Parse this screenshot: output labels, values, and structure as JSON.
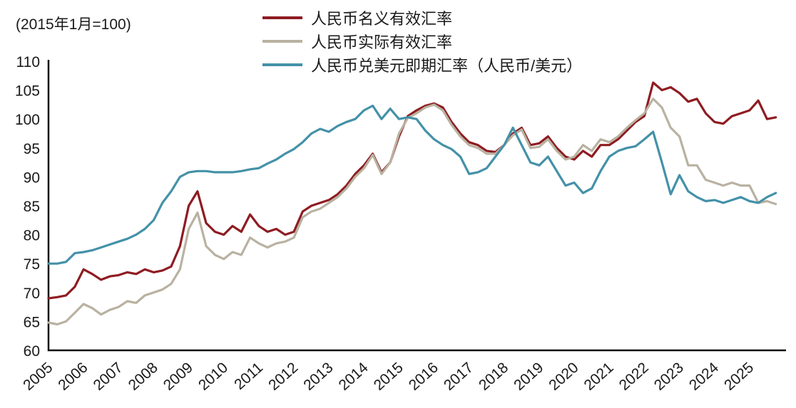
{
  "chart": {
    "note": "(2015年1月=100)"
  },
  "chart_data": {
    "type": "line",
    "title": "",
    "xlabel": "",
    "ylabel": "",
    "note": "(2015年1月=100)",
    "grid": false,
    "legend_position": "top-center",
    "xlim": [
      2005,
      2026
    ],
    "ylim": [
      60,
      110
    ],
    "yticks": [
      60,
      65,
      70,
      75,
      80,
      85,
      90,
      95,
      100,
      105,
      110
    ],
    "xticks": [
      2005,
      2006,
      2007,
      2008,
      2009,
      2010,
      2011,
      2012,
      2013,
      2014,
      2015,
      2016,
      2017,
      2018,
      2019,
      2020,
      2021,
      2022,
      2023,
      2024,
      2025
    ],
    "x": [
      2005,
      2005.25,
      2005.5,
      2005.75,
      2006,
      2006.25,
      2006.5,
      2006.75,
      2007,
      2007.25,
      2007.5,
      2007.75,
      2008,
      2008.25,
      2008.5,
      2008.75,
      2009,
      2009.25,
      2009.5,
      2009.75,
      2010,
      2010.25,
      2010.5,
      2010.75,
      2011,
      2011.25,
      2011.5,
      2011.75,
      2012,
      2012.25,
      2012.5,
      2012.75,
      2013,
      2013.25,
      2013.5,
      2013.75,
      2014,
      2014.25,
      2014.5,
      2014.75,
      2015,
      2015.25,
      2015.5,
      2015.75,
      2016,
      2016.25,
      2016.5,
      2016.75,
      2017,
      2017.25,
      2017.5,
      2017.75,
      2018,
      2018.25,
      2018.5,
      2018.75,
      2019,
      2019.25,
      2019.5,
      2019.75,
      2020,
      2020.25,
      2020.5,
      2020.75,
      2021,
      2021.25,
      2021.5,
      2021.75,
      2022,
      2022.25,
      2022.5,
      2022.75,
      2023,
      2023.25,
      2023.5,
      2023.75,
      2024,
      2024.25,
      2024.5,
      2024.75,
      2025,
      2025.25,
      2025.5,
      2025.75
    ],
    "series": [
      {
        "name": "人民币名义有效汇率",
        "color": "#8e1c22",
        "values": [
          69,
          69.2,
          69.5,
          71,
          74,
          73.2,
          72.2,
          72.8,
          73,
          73.5,
          73.2,
          74,
          73.5,
          73.8,
          74.5,
          78,
          85,
          87.5,
          82,
          80.5,
          80,
          81.5,
          80.5,
          83.5,
          81.5,
          80.5,
          81,
          80,
          80.5,
          84,
          85,
          85.5,
          86,
          87,
          88.5,
          90.5,
          92,
          94,
          90.8,
          92.5,
          97,
          100.5,
          101.5,
          102.3,
          102.7,
          102,
          99.5,
          97.5,
          96,
          95.5,
          94.5,
          94.3,
          95.5,
          97.5,
          98.5,
          95.5,
          95.8,
          97,
          95,
          93.5,
          93,
          94.5,
          93.5,
          95.5,
          95.5,
          96.5,
          98,
          99.5,
          100.5,
          106.3,
          105,
          105.5,
          104.5,
          103,
          103.5,
          101,
          99.5,
          99.2,
          100.5,
          101,
          101.5,
          103.2,
          100,
          100.3
        ]
      },
      {
        "name": "人民币实际有效汇率",
        "color": "#b9b2a1",
        "values": [
          64.8,
          64.5,
          65,
          66.5,
          68,
          67.3,
          66.2,
          67,
          67.5,
          68.5,
          68.2,
          69.5,
          70,
          70.5,
          71.5,
          74,
          81,
          83.8,
          78,
          76.5,
          75.8,
          77,
          76.5,
          79.5,
          78.5,
          77.8,
          78.5,
          78.8,
          79.5,
          83,
          84,
          84.5,
          85.5,
          86.5,
          88,
          90,
          91.5,
          93.8,
          90.5,
          92.5,
          97.5,
          100.2,
          101,
          102,
          102.5,
          101.5,
          99,
          97,
          95.5,
          95,
          94,
          94,
          95.5,
          97.2,
          98.2,
          95,
          95.2,
          96.5,
          94.5,
          93,
          93.5,
          95.5,
          94.5,
          96.5,
          96,
          97,
          98.5,
          99.8,
          101,
          103.5,
          102,
          98.5,
          97,
          92,
          92,
          89.5,
          89,
          88.5,
          89,
          88.5,
          88.5,
          85.5,
          85.8,
          85.3
        ]
      },
      {
        "name": "人民币兑美元即期汇率（人民币/美元）",
        "color": "#4491a8",
        "values": [
          75,
          75,
          75.3,
          76.8,
          77,
          77.3,
          77.8,
          78.3,
          78.8,
          79.3,
          80,
          81,
          82.5,
          85.5,
          87.5,
          90,
          90.8,
          91,
          91,
          90.8,
          90.8,
          90.8,
          91,
          91.3,
          91.5,
          92.3,
          93,
          94,
          94.8,
          96,
          97.5,
          98.3,
          97.8,
          98.8,
          99.5,
          100,
          101.5,
          102.3,
          100,
          101.8,
          100,
          100.3,
          100,
          98,
          96.5,
          95.5,
          94.8,
          93.5,
          90.5,
          90.8,
          91.5,
          93.5,
          95.5,
          98.5,
          95.5,
          92.5,
          92,
          93.5,
          91,
          88.5,
          89,
          87.2,
          88,
          91,
          93.5,
          94.5,
          95,
          95.3,
          96.5,
          97.8,
          92.5,
          87,
          90.3,
          87.5,
          86.5,
          85.8,
          86,
          85.5,
          86,
          86.5,
          85.8,
          85.5,
          86.5,
          87.2
        ]
      }
    ]
  }
}
